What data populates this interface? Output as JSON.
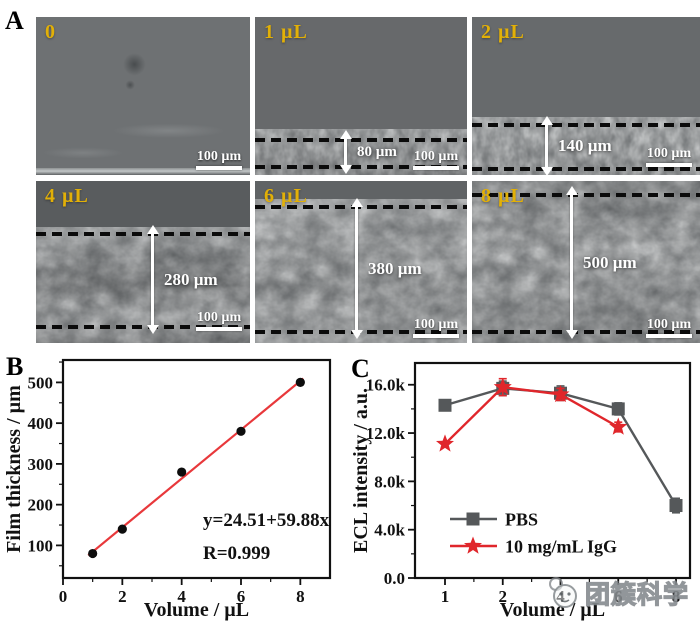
{
  "figure": {
    "panelA": {
      "label": "A",
      "label_color": "#E2B007",
      "images": [
        {
          "label": "0",
          "thickness": null,
          "scalebar": "100 µm"
        },
        {
          "label": "1 µL",
          "thickness": "80 µm",
          "scalebar": "100 µm"
        },
        {
          "label": "2 µL",
          "thickness": "140 µm",
          "scalebar": "100 µm"
        },
        {
          "label": "4 µL",
          "thickness": "280 µm",
          "scalebar": "100 µm"
        },
        {
          "label": "6 µL",
          "thickness": "380 µm",
          "scalebar": "100 µm"
        },
        {
          "label": "8 µL",
          "thickness": "500 µm",
          "scalebar": "100 µm"
        }
      ]
    },
    "panelB": {
      "label": "B"
    },
    "panelC": {
      "label": "C"
    },
    "watermark": {
      "text": "团簇科学"
    }
  },
  "chart_data": [
    {
      "id": "B",
      "type": "scatter",
      "title": "",
      "xlabel": "Volume / µL",
      "ylabel": "Film thickness / µm",
      "x": [
        1,
        2,
        4,
        6,
        8
      ],
      "y": [
        80,
        140,
        280,
        380,
        500
      ],
      "xlim": [
        0,
        9
      ],
      "ylim": [
        20,
        555
      ],
      "xticks": [
        0,
        2,
        4,
        6,
        8
      ],
      "xticks_minor": [
        1,
        3,
        5,
        7
      ],
      "yticks": [
        100,
        200,
        300,
        400,
        500
      ],
      "yticks_minor": [
        50,
        150,
        250,
        350,
        450,
        550
      ],
      "marker_color": "#0d0d0d",
      "fit": {
        "equation": "y=24.51+59.88x",
        "r_label": "R=0.999",
        "intercept": 24.51,
        "slope": 59.88,
        "color": "#e8383b",
        "x_start": 0.85,
        "x_end": 8.1
      },
      "grid": false
    },
    {
      "id": "C",
      "type": "line",
      "title": "",
      "xlabel": "Volume / µL",
      "ylabel": "ECL intensity / a.u.",
      "categories": [
        "1",
        "2",
        "4",
        "6",
        "8"
      ],
      "ylim_k": [
        0,
        17.8
      ],
      "yticks_k": [
        0,
        4,
        8,
        12,
        16
      ],
      "yticks_minor_k": [
        2,
        6,
        10,
        14
      ],
      "ytick_labels": [
        "0.0",
        "4.0k",
        "8.0k",
        "12.0k",
        "16.0k"
      ],
      "series": [
        {
          "name": "PBS",
          "marker": "square",
          "color": "#55585a",
          "values_k": [
            14.3,
            15.7,
            15.3,
            14.0,
            6.0
          ],
          "errors_k": [
            0,
            0.6,
            0.6,
            0.5,
            0.6
          ]
        },
        {
          "name": "10 mg/mL IgG",
          "marker": "star",
          "color": "#e0262b",
          "values_k": [
            11.1,
            15.8,
            15.2,
            12.5,
            null
          ],
          "errors_k": [
            0,
            0.7,
            0.5,
            0.4,
            null
          ]
        }
      ],
      "legend_position": "lower-left-inside",
      "grid": false
    }
  ]
}
